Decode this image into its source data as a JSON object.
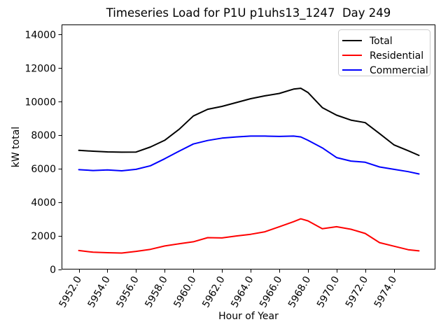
{
  "chart_data": {
    "type": "line",
    "title": "Timeseries Load for P1U p1uhs13_1247  Day 249",
    "xlabel": "Hour of Year",
    "ylabel": "kW total",
    "grid": false,
    "background_color": "#ffffff",
    "axis_color": "#000000",
    "xlim": [
      5950.8,
      5976.9
    ],
    "ylim": [
      0,
      14600
    ],
    "xtick_label_rotation": 60,
    "xticks": {
      "values": [
        5952,
        5954,
        5956,
        5958,
        5960,
        5962,
        5964,
        5966,
        5968,
        5970,
        5972,
        5974
      ],
      "labels": [
        "5952.0",
        "5954.0",
        "5956.0",
        "5958.0",
        "5960.0",
        "5962.0",
        "5964.0",
        "5966.0",
        "5968.0",
        "5970.0",
        "5972.0",
        "5974.0"
      ]
    },
    "yticks": {
      "values": [
        0,
        2000,
        4000,
        6000,
        8000,
        10000,
        12000,
        14000
      ],
      "labels": [
        "0",
        "2000",
        "4000",
        "6000",
        "8000",
        "10000",
        "12000",
        "14000"
      ]
    },
    "x": [
      5952,
      5953,
      5954,
      5955,
      5956,
      5957,
      5958,
      5959,
      5960,
      5961,
      5962,
      5963,
      5964,
      5965,
      5966,
      5967,
      5967.5,
      5968,
      5969,
      5970,
      5971,
      5972,
      5973,
      5974,
      5975,
      5975.75
    ],
    "series": [
      {
        "name": "Total",
        "color": "#000000",
        "values": [
          7100,
          7050,
          7010,
          6990,
          7000,
          7300,
          7700,
          8350,
          9150,
          9550,
          9720,
          9950,
          10180,
          10350,
          10490,
          10750,
          10800,
          10550,
          9650,
          9200,
          8900,
          8750,
          8100,
          7430,
          7080,
          6800
        ]
      },
      {
        "name": "Residential",
        "color": "#ff0000",
        "values": [
          1130,
          1030,
          1000,
          980,
          1080,
          1200,
          1400,
          1530,
          1650,
          1900,
          1880,
          2000,
          2100,
          2250,
          2550,
          2850,
          3020,
          2900,
          2430,
          2550,
          2400,
          2150,
          1600,
          1390,
          1180,
          1110
        ]
      },
      {
        "name": "Commercial",
        "color": "#0000ff",
        "values": [
          5950,
          5900,
          5930,
          5880,
          5970,
          6180,
          6600,
          7050,
          7480,
          7690,
          7830,
          7900,
          7950,
          7950,
          7930,
          7950,
          7900,
          7700,
          7250,
          6670,
          6460,
          6390,
          6110,
          5970,
          5830,
          5695
        ]
      }
    ],
    "legend": {
      "entries": [
        "Total",
        "Residential",
        "Commercial"
      ],
      "position": "upper right",
      "border_color": "#cccccc",
      "background_color": "#ffffff"
    }
  }
}
